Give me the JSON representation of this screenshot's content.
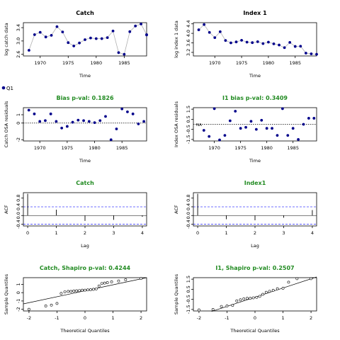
{
  "legend": {
    "label": "Q1",
    "color": "#00008b"
  },
  "colors": {
    "point": "#00008b",
    "fit_line": "#b0b0b0",
    "green_title": "#228b22",
    "ci_line": "#4040ff",
    "axis": "#000000"
  },
  "chart_data": [
    {
      "id": "catch-fit",
      "type": "scatter",
      "title": "Catch",
      "title_color": "#000000",
      "xlabel": "Time",
      "ylabel": "log catch data",
      "xlim": [
        1967,
        1989
      ],
      "ylim": [
        2.55,
        3.55
      ],
      "xticks": [
        1970,
        1975,
        1980,
        1985
      ],
      "yticks": [
        2.6,
        3.0,
        3.4
      ],
      "ytick_labels": [
        "2.6",
        "3.0",
        "3.4"
      ],
      "x": [
        1968,
        1969,
        1970,
        1971,
        1972,
        1973,
        1974,
        1975,
        1976,
        1977,
        1978,
        1979,
        1980,
        1981,
        1982,
        1983,
        1984,
        1985,
        1986,
        1987,
        1988,
        1989
      ],
      "y": [
        2.72,
        3.19,
        3.26,
        3.12,
        3.17,
        3.43,
        3.27,
        2.95,
        2.85,
        2.94,
        3.04,
        3.09,
        3.07,
        3.07,
        3.1,
        3.3,
        2.65,
        2.6,
        3.28,
        3.45,
        3.51,
        3.19
      ],
      "extra": [
        [
          1989,
          3.18
        ]
      ],
      "connect": true
    },
    {
      "id": "index-fit",
      "type": "scatter",
      "title": "Index 1",
      "title_color": "#000000",
      "xlabel": "Time",
      "ylabel": "log index 1 data",
      "xlim": [
        1966,
        1989
      ],
      "ylim": [
        3.05,
        4.45
      ],
      "xticks": [
        1970,
        1975,
        1980,
        1985
      ],
      "yticks": [
        3.2,
        3.6,
        4.0,
        4.4
      ],
      "ytick_labels": [
        "3.2",
        "3.6",
        "4.0",
        "4.4"
      ],
      "x": [
        1967,
        1968,
        1969,
        1970,
        1971,
        1972,
        1973,
        1974,
        1975,
        1976,
        1977,
        1978,
        1979,
        1980,
        1981,
        1982,
        1983,
        1984,
        1985,
        1986,
        1987,
        1988,
        1989
      ],
      "y": [
        4.15,
        4.37,
        4.04,
        3.82,
        4.07,
        3.7,
        3.6,
        3.64,
        3.71,
        3.63,
        3.61,
        3.65,
        3.57,
        3.63,
        3.56,
        3.51,
        3.4,
        3.62,
        3.45,
        3.46,
        3.17,
        3.14,
        3.12
      ],
      "connect": true
    },
    {
      "id": "catch-resid",
      "type": "scatter",
      "title": "Bias p-val: 0.1826",
      "title_color": "#228b22",
      "xlabel": "Time",
      "ylabel": "Catch OSA residuals",
      "xlim": [
        1967,
        1989.5
      ],
      "ylim": [
        -2.15,
        1.85
      ],
      "xticks": [
        1970,
        1975,
        1980,
        1985
      ],
      "yticks": [
        -2,
        0,
        1
      ],
      "ytick_labels": [
        "-2",
        "0",
        "1"
      ],
      "x": [
        1968,
        1969,
        1970,
        1971,
        1972,
        1973,
        1974,
        1975,
        1976,
        1977,
        1978,
        1979,
        1980,
        1981,
        1982,
        1983,
        1984,
        1985,
        1986,
        1987,
        1988,
        1989
      ],
      "y": [
        1.55,
        1.1,
        0.2,
        0.3,
        1.1,
        0.2,
        -0.6,
        -0.4,
        0.1,
        0.35,
        0.3,
        0.2,
        0.05,
        0.3,
        0.8,
        -2.0,
        -0.7,
        1.7,
        1.35,
        1.1,
        -0.1,
        0.2
      ],
      "zero_line": true
    },
    {
      "id": "index-resid",
      "type": "scatter",
      "title": "I1 bias p-val: 0.3409",
      "title_color": "#228b22",
      "xlabel": "Time",
      "ylabel": "Index OSA residuals",
      "xlim": [
        1966,
        1989.5
      ],
      "ylim": [
        -1.65,
        1.65
      ],
      "xticks": [
        1970,
        1975,
        1980,
        1985
      ],
      "yticks": [
        -1.5,
        -0.5,
        0.5,
        1.5
      ],
      "ytick_labels": [
        "-1.5",
        "-0.5",
        "0.5",
        "1.5"
      ],
      "na_label": "NA",
      "x": [
        1968,
        1969,
        1970,
        1971,
        1972,
        1973,
        1974,
        1975,
        1976,
        1977,
        1978,
        1979,
        1980,
        1981,
        1982,
        1983,
        1984,
        1985,
        1986,
        1987,
        1988,
        1989
      ],
      "y": [
        -0.6,
        -1.2,
        1.55,
        -1.55,
        -1.1,
        0.35,
        1.3,
        -0.4,
        -0.3,
        0.3,
        -0.5,
        0.4,
        -0.4,
        -0.4,
        -1.1,
        1.55,
        -1.1,
        -0.4,
        -1.5,
        0.0,
        0.6,
        0.6
      ],
      "zero_line": true
    },
    {
      "id": "catch-acf",
      "type": "bar",
      "title": "Catch",
      "title_color": "#228b22",
      "xlabel": "Lag",
      "ylabel": "ACF",
      "xlim": [
        -0.15,
        4.15
      ],
      "ylim": [
        -0.48,
        1.05
      ],
      "xticks": [
        0,
        1,
        2,
        3,
        4
      ],
      "yticks": [
        -0.4,
        0.0,
        0.4,
        0.8
      ],
      "ytick_labels": [
        "-0.4",
        "0.0",
        "0.4",
        "0.8"
      ],
      "lags": [
        0,
        1,
        2,
        3,
        4
      ],
      "values": [
        1.0,
        0.27,
        -0.25,
        -0.2,
        -0.06
      ],
      "ci": [
        0.4,
        -0.4
      ]
    },
    {
      "id": "index-acf",
      "type": "bar",
      "title": "Index1",
      "title_color": "#228b22",
      "xlabel": "Lag",
      "ylabel": "ACF",
      "xlim": [
        -0.15,
        4.15
      ],
      "ylim": [
        -0.48,
        1.05
      ],
      "xticks": [
        0,
        1,
        2,
        3,
        4
      ],
      "yticks": [
        -0.4,
        0.0,
        0.4,
        0.8
      ],
      "ytick_labels": [
        "-0.4",
        "0.0",
        "0.4",
        "0.8"
      ],
      "lags": [
        0,
        1,
        2,
        3,
        4
      ],
      "values": [
        1.0,
        -0.17,
        -0.22,
        -0.1,
        0.25
      ],
      "ci": [
        0.4,
        -0.4
      ]
    },
    {
      "id": "catch-qq",
      "type": "scatter",
      "title": "Catch, Shapiro p-val: 0.4244",
      "title_color": "#228b22",
      "xlabel": "Theoretical Quantiles",
      "ylabel": "Sample Quantiles",
      "xlim": [
        -2.2,
        2.2
      ],
      "ylim": [
        -2.2,
        1.8
      ],
      "xticks": [
        -2,
        -1,
        0,
        1,
        2
      ],
      "yticks": [
        -2,
        -1,
        0,
        1
      ],
      "ytick_labels": [
        "-2",
        "-1",
        "0",
        "1"
      ],
      "x": [
        -2.0,
        -1.4,
        -1.2,
        -1.0,
        -0.85,
        -0.72,
        -0.6,
        -0.5,
        -0.4,
        -0.3,
        -0.2,
        -0.1,
        0.0,
        0.1,
        0.2,
        0.3,
        0.4,
        0.5,
        0.6,
        0.7,
        0.8,
        0.95,
        1.2,
        1.45,
        2.0
      ],
      "y": [
        -2.0,
        -1.6,
        -1.5,
        -1.3,
        -0.1,
        0.1,
        0.15,
        0.15,
        0.2,
        0.22,
        0.25,
        0.3,
        0.3,
        0.33,
        0.35,
        0.4,
        0.45,
        0.8,
        1.1,
        1.15,
        1.2,
        1.3,
        1.4,
        1.55,
        1.7
      ],
      "open": true,
      "fit": [
        [
          -2.2,
          -1.35
        ],
        [
          2.2,
          1.8
        ]
      ]
    },
    {
      "id": "index-qq",
      "type": "scatter",
      "title": "I1, Shapiro p-val: 0.2507",
      "title_color": "#228b22",
      "xlabel": "Theoretical Quantiles",
      "ylabel": "Sample Quantiles",
      "xlim": [
        -2.2,
        2.2
      ],
      "ylim": [
        -1.65,
        1.65
      ],
      "xticks": [
        -2,
        -1,
        0,
        1,
        2
      ],
      "yticks": [
        -1.5,
        -0.5,
        0.5,
        1.5
      ],
      "ytick_labels": [
        "-1.5",
        "-0.5",
        "0.5",
        "1.5"
      ],
      "x": [
        -2.0,
        -1.5,
        -1.2,
        -1.0,
        -0.8,
        -0.65,
        -0.52,
        -0.4,
        -0.28,
        -0.17,
        -0.06,
        0.06,
        0.17,
        0.28,
        0.4,
        0.52,
        0.65,
        0.8,
        1.0,
        1.2,
        1.5,
        2.0
      ],
      "y": [
        -1.55,
        -1.5,
        -1.2,
        -1.15,
        -1.1,
        -0.65,
        -0.55,
        -0.45,
        -0.4,
        -0.4,
        -0.35,
        -0.3,
        -0.2,
        0.0,
        0.2,
        0.3,
        0.4,
        0.55,
        0.6,
        1.2,
        1.55,
        1.55
      ],
      "open": true,
      "fit": [
        [
          -1.55,
          -1.7
        ],
        [
          2.2,
          1.72
        ]
      ]
    }
  ]
}
